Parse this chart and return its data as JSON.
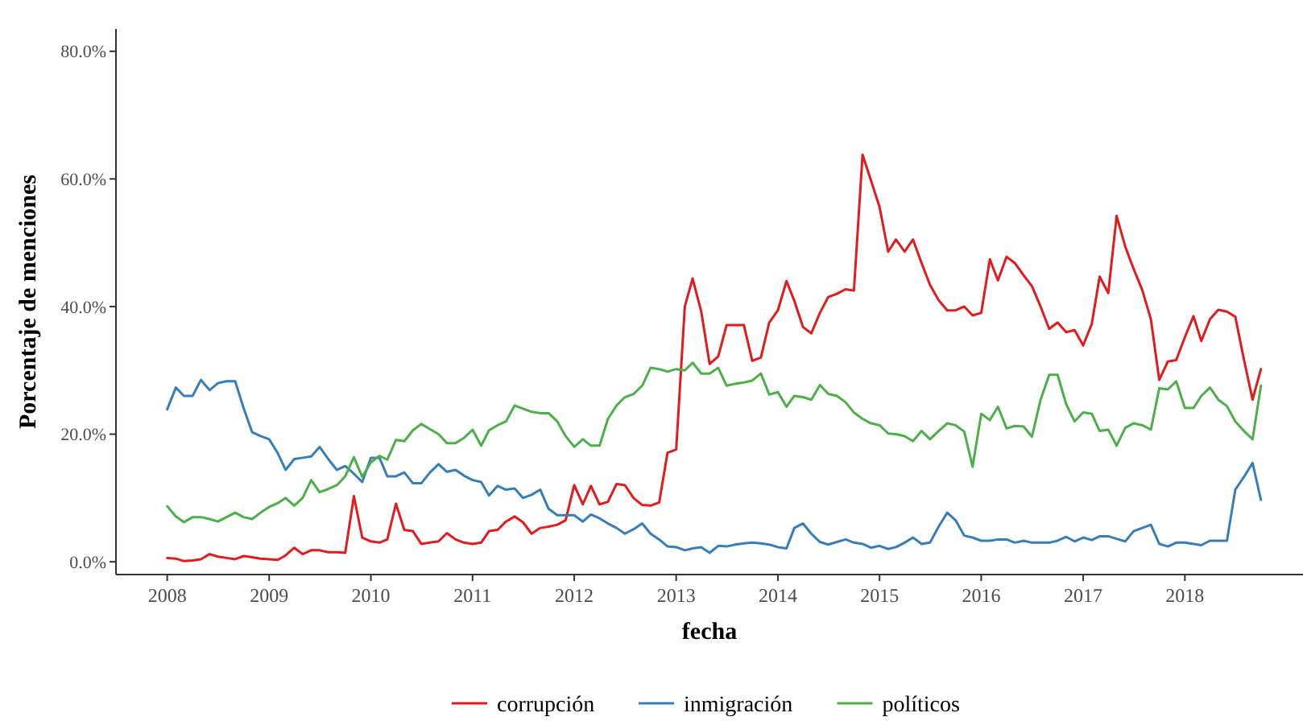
{
  "chart_data": {
    "type": "line",
    "xlabel": "fecha",
    "ylabel": "Porcentaje de menciones",
    "x": [
      "2008-01",
      "2008-02",
      "2008-03",
      "2008-04",
      "2008-05",
      "2008-06",
      "2008-07",
      "2008-08",
      "2008-09",
      "2008-10",
      "2008-11",
      "2008-12",
      "2009-01",
      "2009-02",
      "2009-03",
      "2009-04",
      "2009-05",
      "2009-06",
      "2009-07",
      "2009-08",
      "2009-09",
      "2009-10",
      "2009-11",
      "2009-12",
      "2010-01",
      "2010-02",
      "2010-03",
      "2010-04",
      "2010-05",
      "2010-06",
      "2010-07",
      "2010-08",
      "2010-09",
      "2010-10",
      "2010-11",
      "2010-12",
      "2011-01",
      "2011-02",
      "2011-03",
      "2011-04",
      "2011-05",
      "2011-06",
      "2011-07",
      "2011-08",
      "2011-09",
      "2011-10",
      "2011-11",
      "2011-12",
      "2012-01",
      "2012-02",
      "2012-03",
      "2012-04",
      "2012-05",
      "2012-06",
      "2012-07",
      "2012-08",
      "2012-09",
      "2012-10",
      "2012-11",
      "2012-12",
      "2013-01",
      "2013-02",
      "2013-03",
      "2013-04",
      "2013-05",
      "2013-06",
      "2013-07",
      "2013-08",
      "2013-09",
      "2013-10",
      "2013-11",
      "2013-12",
      "2014-01",
      "2014-02",
      "2014-03",
      "2014-04",
      "2014-05",
      "2014-06",
      "2014-07",
      "2014-08",
      "2014-09",
      "2014-10",
      "2014-11",
      "2014-12",
      "2015-01",
      "2015-02",
      "2015-03",
      "2015-04",
      "2015-05",
      "2015-06",
      "2015-07",
      "2015-08",
      "2015-09",
      "2015-10",
      "2015-11",
      "2015-12",
      "2016-01",
      "2016-02",
      "2016-03",
      "2016-04",
      "2016-05",
      "2016-06",
      "2016-07",
      "2016-08",
      "2016-09",
      "2016-10",
      "2016-11",
      "2016-12",
      "2017-01",
      "2017-02",
      "2017-03",
      "2017-04",
      "2017-05",
      "2017-06",
      "2017-07",
      "2017-08",
      "2017-09",
      "2017-10",
      "2017-11",
      "2017-12",
      "2018-01",
      "2018-02",
      "2018-03",
      "2018-04",
      "2018-05",
      "2018-06",
      "2018-07",
      "2018-08",
      "2018-09",
      "2018-10"
    ],
    "series": [
      {
        "name": "corrupción",
        "color": "#e41a1c",
        "values": [
          0.6,
          0.5,
          0.1,
          0.2,
          0.4,
          1.2,
          0.8,
          0.6,
          0.4,
          0.9,
          0.7,
          0.5,
          0.4,
          0.3,
          1.0,
          2.2,
          1.2,
          1.8,
          1.8,
          1.5,
          1.5,
          1.4,
          10.3,
          3.8,
          3.2,
          3.0,
          3.5,
          9.1,
          5.0,
          4.8,
          2.8,
          3.0,
          3.2,
          4.5,
          3.5,
          3.0,
          2.8,
          3.0,
          4.8,
          5.0,
          6.3,
          7.1,
          6.2,
          4.4,
          5.3,
          5.5,
          5.8,
          6.5,
          12.0,
          9.0,
          11.9,
          9.0,
          9.4,
          12.2,
          12.0,
          10.0,
          8.9,
          8.8,
          9.3,
          17.1,
          17.6,
          40.0,
          44.4,
          39.2,
          31.0,
          32.2,
          37.1,
          37.1,
          37.1,
          31.5,
          32.0,
          37.5,
          39.4,
          44.0,
          40.9,
          36.8,
          35.8,
          39.0,
          41.5,
          42.0,
          42.7,
          42.5,
          63.8,
          59.8,
          55.6,
          48.6,
          50.5,
          48.6,
          50.5,
          46.8,
          43.4,
          41.0,
          39.4,
          39.4,
          40.0,
          38.6,
          39.0,
          47.4,
          44.1,
          47.8,
          46.8,
          44.9,
          43.2,
          40.0,
          36.5,
          37.5,
          36.0,
          36.3,
          33.9,
          37.3,
          44.7,
          42.1,
          54.2,
          49.4,
          45.9,
          42.6,
          38.0,
          28.5,
          31.4,
          31.6,
          35.2,
          38.5,
          34.6,
          38.0,
          39.5,
          39.2,
          38.4,
          31.7,
          25.4,
          30.2
        ]
      },
      {
        "name": "inmigración",
        "color": "#377eb8",
        "values": [
          23.9,
          27.3,
          26.0,
          26.0,
          28.5,
          26.9,
          28.0,
          28.3,
          28.3,
          24.1,
          20.3,
          19.7,
          19.2,
          17.0,
          14.4,
          16.1,
          16.3,
          16.5,
          18.0,
          16.1,
          14.4,
          15.0,
          13.8,
          12.5,
          16.3,
          16.3,
          13.4,
          13.4,
          14.0,
          12.3,
          12.3,
          14.0,
          15.3,
          14.1,
          14.4,
          13.5,
          12.8,
          12.5,
          10.4,
          11.9,
          11.3,
          11.5,
          10.0,
          10.5,
          11.3,
          8.3,
          7.3,
          7.3,
          7.3,
          6.3,
          7.4,
          6.8,
          6.0,
          5.3,
          4.4,
          5.1,
          6.0,
          4.4,
          3.5,
          2.4,
          2.3,
          1.8,
          2.1,
          2.3,
          1.4,
          2.5,
          2.4,
          2.7,
          2.9,
          3.0,
          2.9,
          2.7,
          2.3,
          2.1,
          5.3,
          6.0,
          4.4,
          3.1,
          2.7,
          3.1,
          3.5,
          3.0,
          2.8,
          2.2,
          2.5,
          2.0,
          2.3,
          3.0,
          3.8,
          2.8,
          3.0,
          5.5,
          7.7,
          6.5,
          4.1,
          3.8,
          3.3,
          3.3,
          3.5,
          3.5,
          3.0,
          3.3,
          3.0,
          3.0,
          3.0,
          3.3,
          3.9,
          3.2,
          3.8,
          3.4,
          4.0,
          4.0,
          3.6,
          3.2,
          4.8,
          5.3,
          5.8,
          2.8,
          2.4,
          3.0,
          3.0,
          2.8,
          2.6,
          3.3,
          3.3,
          3.3,
          11.3,
          13.3,
          15.5,
          9.7
        ]
      },
      {
        "name": "políticos",
        "color": "#4daf4a",
        "values": [
          8.7,
          7.1,
          6.2,
          7.0,
          7.0,
          6.7,
          6.3,
          7.0,
          7.7,
          7.0,
          6.7,
          7.7,
          8.6,
          9.2,
          10.0,
          8.8,
          10.0,
          12.8,
          10.9,
          11.4,
          12.0,
          13.4,
          16.4,
          13.3,
          15.6,
          16.6,
          16.0,
          19.1,
          18.9,
          20.6,
          21.6,
          20.8,
          20.0,
          18.6,
          18.6,
          19.4,
          20.7,
          18.2,
          20.6,
          21.4,
          22.0,
          24.5,
          24.0,
          23.5,
          23.3,
          23.3,
          22.0,
          19.7,
          18.0,
          19.2,
          18.2,
          18.2,
          22.4,
          24.5,
          25.8,
          26.3,
          27.6,
          30.4,
          30.2,
          29.8,
          30.2,
          30.0,
          31.2,
          29.5,
          29.5,
          30.4,
          27.6,
          27.9,
          28.1,
          28.4,
          29.5,
          26.2,
          26.6,
          24.3,
          26.0,
          25.8,
          25.4,
          27.7,
          26.3,
          26.0,
          25.0,
          23.4,
          22.4,
          21.7,
          21.4,
          20.1,
          20.0,
          19.7,
          18.9,
          20.5,
          19.2,
          20.5,
          21.7,
          21.4,
          20.4,
          14.9,
          23.2,
          22.2,
          24.3,
          20.9,
          21.3,
          21.2,
          19.6,
          25.4,
          29.3,
          29.3,
          24.7,
          22.0,
          23.4,
          23.2,
          20.5,
          20.7,
          18.2,
          21.0,
          21.7,
          21.4,
          20.7,
          27.2,
          27.0,
          28.3,
          24.1,
          24.1,
          26.0,
          27.3,
          25.4,
          24.4,
          22.0,
          20.5,
          19.2,
          27.6
        ]
      }
    ],
    "xlim": [
      "2007-07",
      "2019-03"
    ],
    "xticks": [
      "2008",
      "2009",
      "2010",
      "2011",
      "2012",
      "2013",
      "2014",
      "2015",
      "2016",
      "2017",
      "2018"
    ],
    "ylim": [
      -2,
      83.5
    ],
    "yticks": [
      {
        "value": 0,
        "label": "0.0%"
      },
      {
        "value": 20,
        "label": "20.0%"
      },
      {
        "value": 40,
        "label": "40.0%"
      },
      {
        "value": 60,
        "label": "60.0%"
      },
      {
        "value": 80,
        "label": "80.0%"
      }
    ],
    "legend": "bottom"
  }
}
